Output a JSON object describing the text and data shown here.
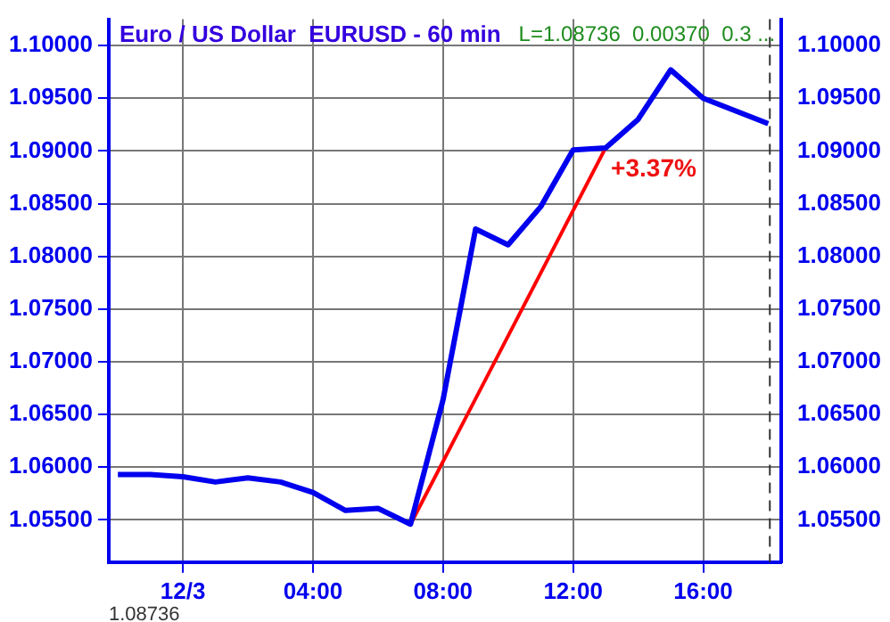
{
  "chart_data": {
    "type": "line",
    "title": "Euro / US Dollar  EURUSD - 60 min",
    "subtitle": "L=1.08736  0.00370  0.3 ...",
    "series": [
      {
        "color": "#0000ee",
        "x": [
          -2,
          -1,
          0,
          1,
          2,
          3,
          4,
          5,
          6,
          7,
          8,
          9,
          10,
          11,
          12,
          13,
          14,
          15,
          16,
          17,
          18
        ],
        "values": [
          1.0593,
          1.0593,
          1.0591,
          1.0586,
          1.059,
          1.0586,
          1.0576,
          1.0559,
          1.0561,
          1.0546,
          1.0664,
          1.0826,
          1.0811,
          1.0847,
          1.0901,
          1.0903,
          1.093,
          1.0977,
          1.095,
          1.0938,
          1.0926
        ]
      },
      {
        "type": "line",
        "color": "#ff0000",
        "x": [
          7,
          13
        ],
        "values": [
          1.0546,
          1.0903
        ]
      }
    ],
    "xlim": [
      -2.28,
      18.4
    ],
    "xticks": [
      {
        "value": 0,
        "label": "12/3"
      },
      {
        "value": 4,
        "label": "04:00"
      },
      {
        "value": 8,
        "label": "08:00"
      },
      {
        "value": 12,
        "label": "12:00"
      },
      {
        "value": 16,
        "label": "16:00"
      }
    ],
    "ylim": [
      1.051,
      1.1025
    ],
    "yticks": [
      {
        "value": 1.055,
        "label": "1.05500"
      },
      {
        "value": 1.06,
        "label": "1.06000"
      },
      {
        "value": 1.065,
        "label": "1.06500"
      },
      {
        "value": 1.07,
        "label": "1.07000"
      },
      {
        "value": 1.075,
        "label": "1.07500"
      },
      {
        "value": 1.08,
        "label": "1.08000"
      },
      {
        "value": 1.085,
        "label": "1.08500"
      },
      {
        "value": 1.09,
        "label": "1.09000"
      },
      {
        "value": 1.095,
        "label": "1.09500"
      },
      {
        "value": 1.1,
        "label": "1.10000"
      }
    ],
    "y2lim": [
      1.051,
      1.1025
    ],
    "y2ticks": [
      {
        "value": 1.055,
        "label": "1.05500"
      },
      {
        "value": 1.06,
        "label": "1.06000"
      },
      {
        "value": 1.065,
        "label": "1.06500"
      },
      {
        "value": 1.07,
        "label": "1.07000"
      },
      {
        "value": 1.075,
        "label": "1.07500"
      },
      {
        "value": 1.08,
        "label": "1.08000"
      },
      {
        "value": 1.085,
        "label": "1.08500"
      },
      {
        "value": 1.09,
        "label": "1.09000"
      },
      {
        "value": 1.095,
        "label": "1.09500"
      },
      {
        "value": 1.1,
        "label": "1.10000"
      }
    ],
    "ref_lines": [
      {
        "axis": "x",
        "value": 18.05,
        "color": "#333333",
        "line_style": "dashed"
      }
    ],
    "annotations": [
      {
        "text": "+3.37%",
        "x": 13,
        "y": 1.0903
      },
      "1.08736"
    ],
    "grid": true,
    "legend": false,
    "marker": "none",
    "line_style": "solid"
  }
}
